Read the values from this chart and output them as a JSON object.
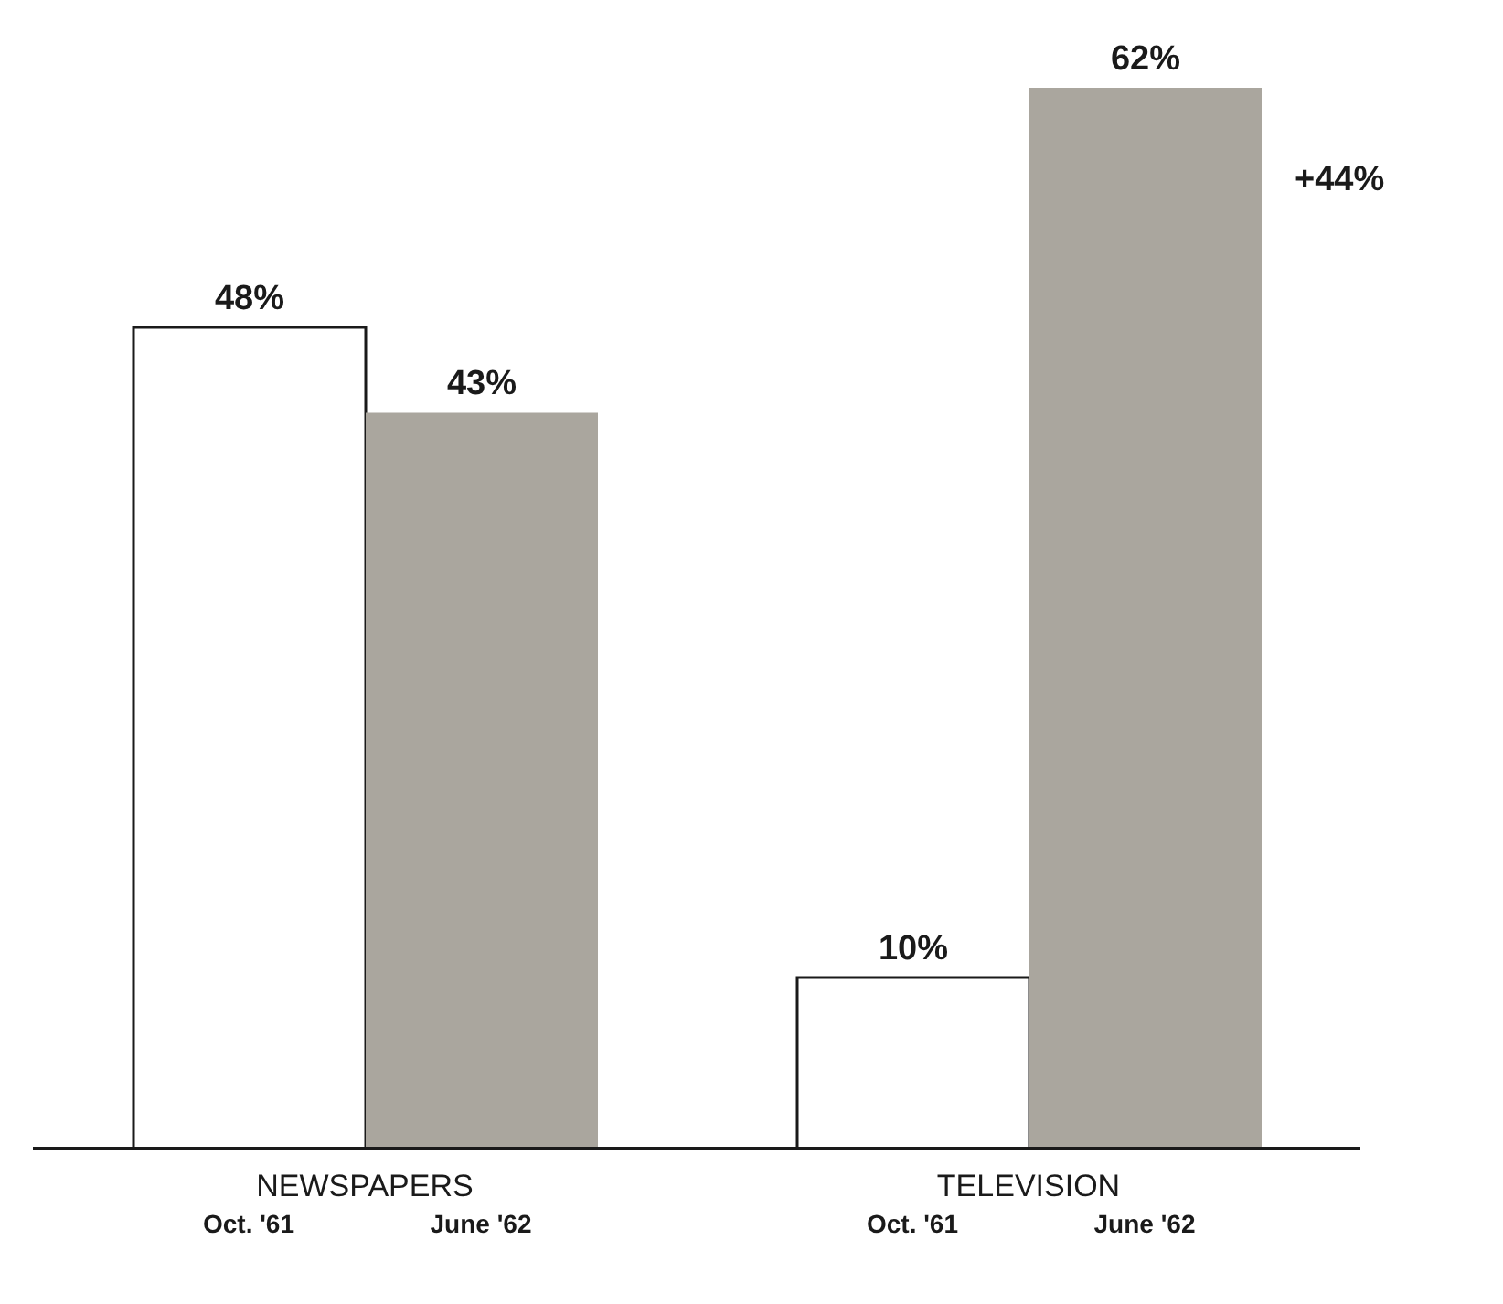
{
  "chart_data": {
    "type": "bar",
    "categories": [
      "NEWSPAPERS",
      "TELEVISION"
    ],
    "series": [
      {
        "name": "Oct. '61",
        "color": "#1a1a1a",
        "values": [
          48,
          10
        ],
        "value_labels": [
          "48%",
          "10%"
        ]
      },
      {
        "name": "June '62",
        "color": "#aaa69e",
        "values": [
          43,
          62
        ],
        "value_labels": [
          "43%",
          "62%"
        ]
      }
    ],
    "annotations": [
      "+44%"
    ]
  }
}
